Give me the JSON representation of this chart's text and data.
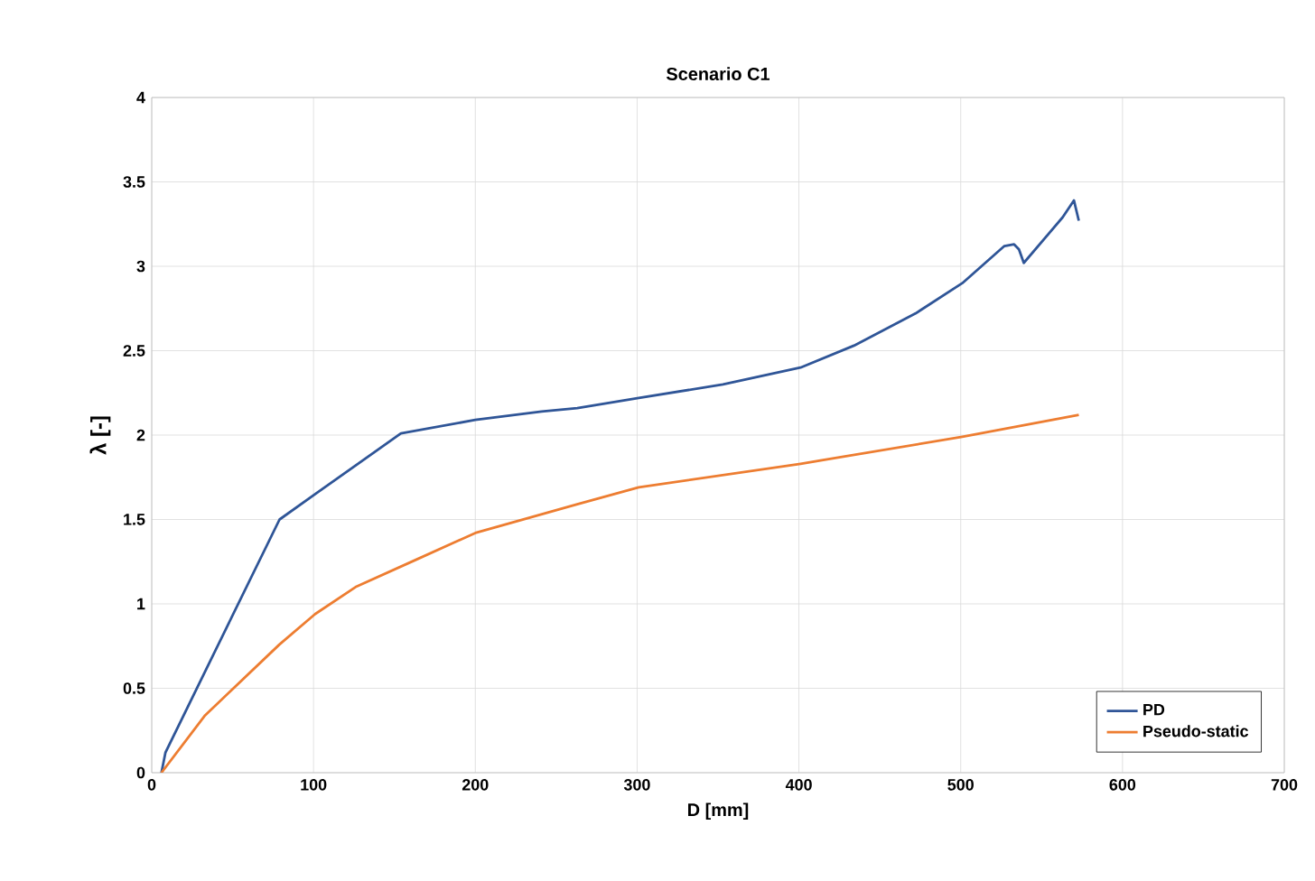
{
  "chart_data": {
    "type": "line",
    "title": "Scenario C1",
    "xlabel": "D [mm]",
    "ylabel": "λ [-]",
    "xlim": [
      0,
      700
    ],
    "xticks": [
      0,
      100,
      200,
      300,
      400,
      500,
      600,
      700
    ],
    "ylim": [
      0,
      4
    ],
    "yticks": [
      0,
      0.5,
      1,
      1.5,
      2,
      2.5,
      3,
      3.5,
      4
    ],
    "grid": true,
    "legend": "bottom right",
    "series": [
      {
        "name": "PD",
        "color": "#2f5597",
        "x": [
          6,
          8.5,
          79,
          101,
          154,
          200,
          241,
          263,
          301,
          353,
          401,
          434,
          472,
          501,
          527,
          533,
          536,
          539,
          563,
          570,
          573
        ],
        "values": [
          0,
          0.12,
          1.5,
          1.65,
          2.01,
          2.09,
          2.14,
          2.16,
          2.22,
          2.3,
          2.4,
          2.53,
          2.72,
          2.9,
          3.12,
          3.13,
          3.1,
          3.02,
          3.29,
          3.39,
          3.27
        ]
      },
      {
        "name": "Pseudo-static",
        "color": "#ed7d31",
        "x": [
          6,
          33,
          79,
          101,
          126,
          163,
          200,
          263,
          301,
          401,
          501,
          573
        ],
        "values": [
          0,
          0.34,
          0.76,
          0.94,
          1.1,
          1.26,
          1.42,
          1.59,
          1.69,
          1.83,
          1.99,
          2.12
        ]
      }
    ]
  }
}
